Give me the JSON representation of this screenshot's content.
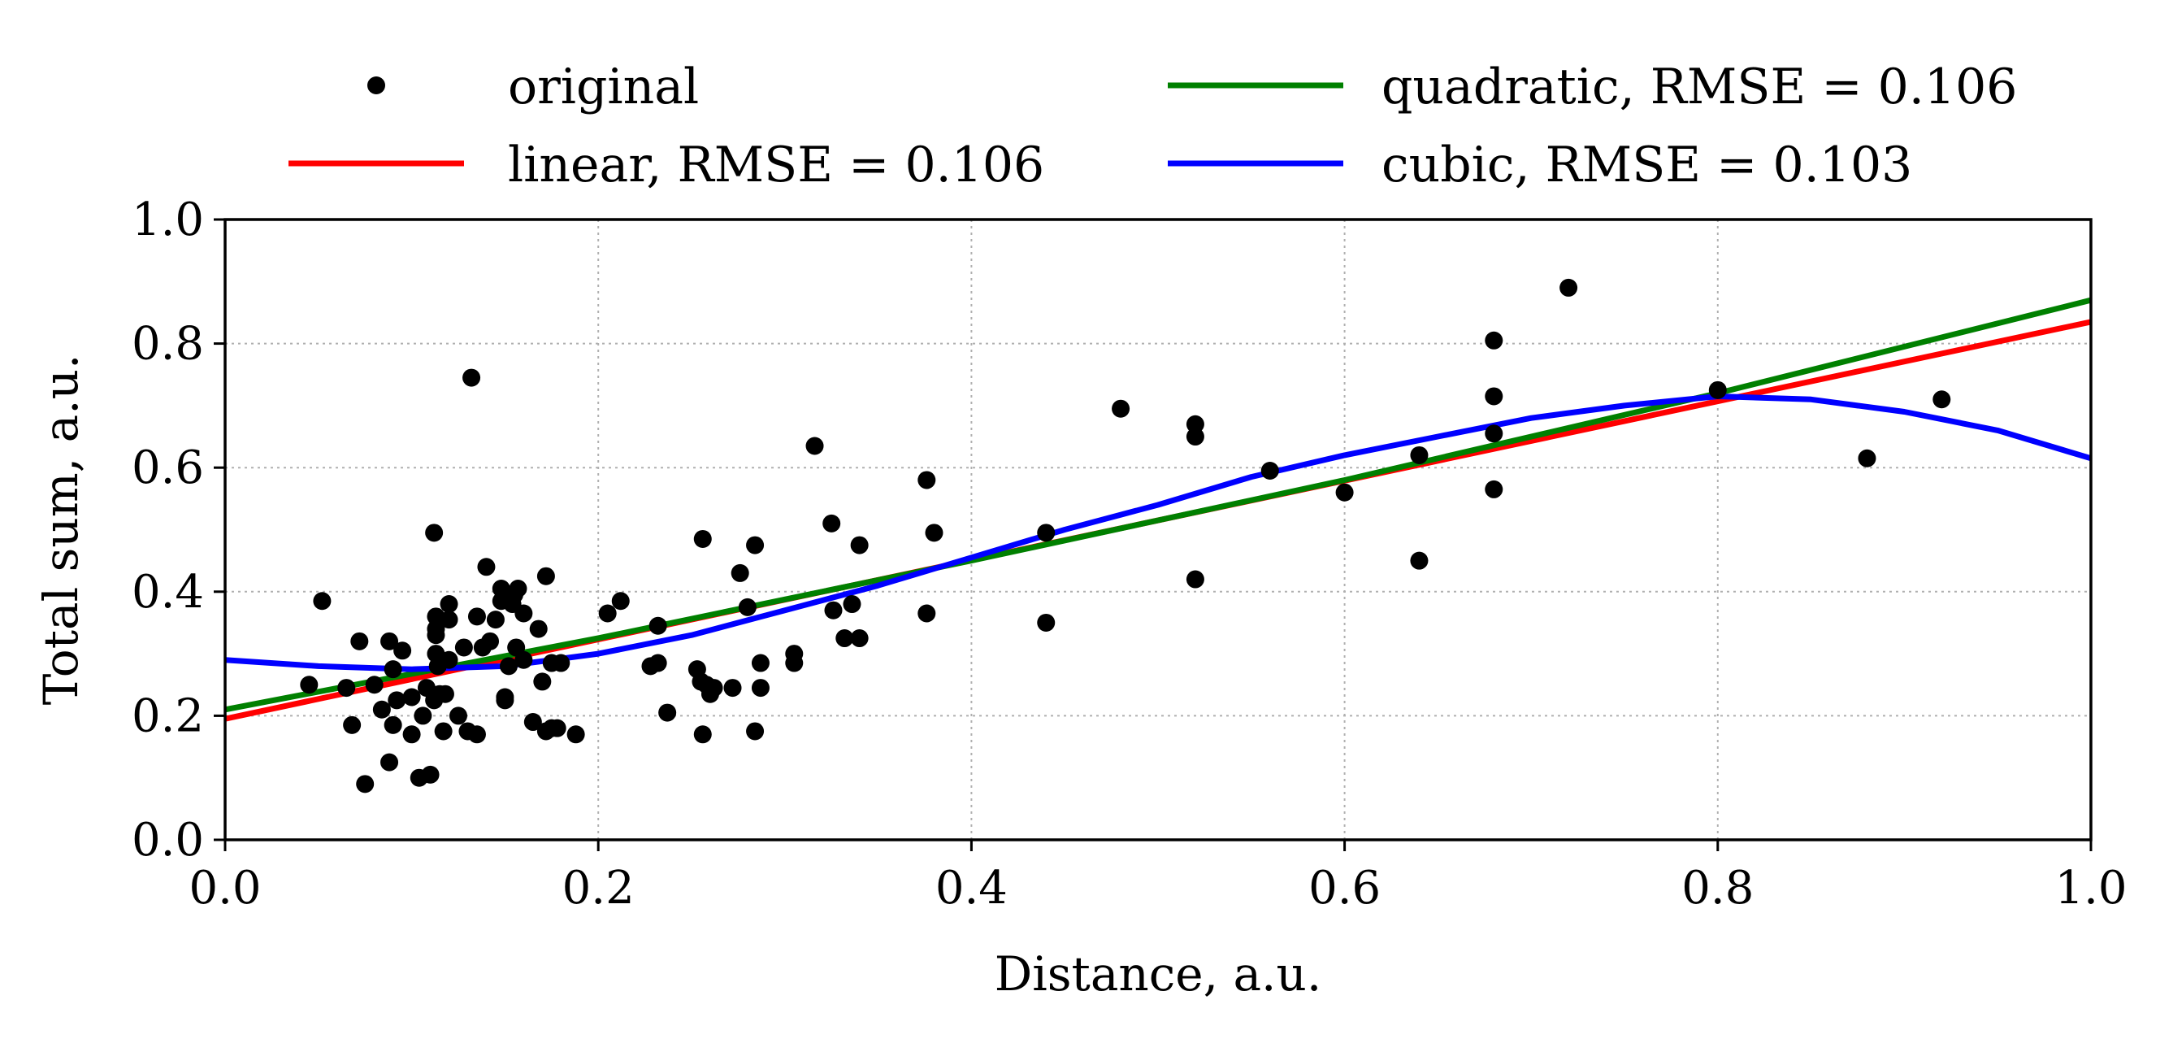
{
  "chart_data": {
    "type": "scatter",
    "xlabel": "Distance, a.u.",
    "ylabel": "Total sum, a.u.",
    "xlim": [
      0.0,
      1.0
    ],
    "ylim": [
      0.0,
      1.0
    ],
    "xticks": [
      "0.0",
      "0.2",
      "0.4",
      "0.6",
      "0.8",
      "1.0"
    ],
    "yticks": [
      "0.0",
      "0.2",
      "0.4",
      "0.6",
      "0.8",
      "1.0"
    ],
    "grid": true,
    "legend_position": "top",
    "colors": {
      "original": "#000000",
      "linear": "#ff0000",
      "quadratic": "#008000",
      "cubic": "#0000ff"
    },
    "series": [
      {
        "name": "original",
        "kind": "points",
        "points": [
          [
            0.045,
            0.25
          ],
          [
            0.052,
            0.385
          ],
          [
            0.065,
            0.245
          ],
          [
            0.068,
            0.185
          ],
          [
            0.072,
            0.32
          ],
          [
            0.075,
            0.09
          ],
          [
            0.08,
            0.25
          ],
          [
            0.084,
            0.21
          ],
          [
            0.088,
            0.32
          ],
          [
            0.088,
            0.125
          ],
          [
            0.09,
            0.185
          ],
          [
            0.09,
            0.275
          ],
          [
            0.092,
            0.225
          ],
          [
            0.095,
            0.305
          ],
          [
            0.1,
            0.17
          ],
          [
            0.1,
            0.23
          ],
          [
            0.104,
            0.1
          ],
          [
            0.106,
            0.2
          ],
          [
            0.108,
            0.245
          ],
          [
            0.11,
            0.105
          ],
          [
            0.112,
            0.225
          ],
          [
            0.112,
            0.495
          ],
          [
            0.113,
            0.36
          ],
          [
            0.113,
            0.34
          ],
          [
            0.113,
            0.33
          ],
          [
            0.113,
            0.3
          ],
          [
            0.114,
            0.28
          ],
          [
            0.115,
            0.235
          ],
          [
            0.117,
            0.175
          ],
          [
            0.118,
            0.235
          ],
          [
            0.12,
            0.29
          ],
          [
            0.12,
            0.355
          ],
          [
            0.12,
            0.38
          ],
          [
            0.125,
            0.2
          ],
          [
            0.128,
            0.31
          ],
          [
            0.13,
            0.175
          ],
          [
            0.132,
            0.745
          ],
          [
            0.135,
            0.36
          ],
          [
            0.135,
            0.17
          ],
          [
            0.138,
            0.31
          ],
          [
            0.14,
            0.44
          ],
          [
            0.142,
            0.32
          ],
          [
            0.145,
            0.355
          ],
          [
            0.148,
            0.385
          ],
          [
            0.148,
            0.405
          ],
          [
            0.15,
            0.23
          ],
          [
            0.15,
            0.225
          ],
          [
            0.152,
            0.28
          ],
          [
            0.154,
            0.38
          ],
          [
            0.155,
            0.395
          ],
          [
            0.156,
            0.31
          ],
          [
            0.157,
            0.405
          ],
          [
            0.16,
            0.365
          ],
          [
            0.16,
            0.29
          ],
          [
            0.165,
            0.19
          ],
          [
            0.168,
            0.34
          ],
          [
            0.17,
            0.255
          ],
          [
            0.172,
            0.175
          ],
          [
            0.172,
            0.425
          ],
          [
            0.175,
            0.285
          ],
          [
            0.175,
            0.18
          ],
          [
            0.178,
            0.18
          ],
          [
            0.18,
            0.285
          ],
          [
            0.188,
            0.17
          ],
          [
            0.205,
            0.365
          ],
          [
            0.212,
            0.385
          ],
          [
            0.228,
            0.28
          ],
          [
            0.232,
            0.285
          ],
          [
            0.232,
            0.345
          ],
          [
            0.237,
            0.205
          ],
          [
            0.253,
            0.275
          ],
          [
            0.255,
            0.255
          ],
          [
            0.256,
            0.17
          ],
          [
            0.256,
            0.485
          ],
          [
            0.258,
            0.25
          ],
          [
            0.26,
            0.235
          ],
          [
            0.262,
            0.245
          ],
          [
            0.272,
            0.245
          ],
          [
            0.276,
            0.43
          ],
          [
            0.28,
            0.375
          ],
          [
            0.284,
            0.175
          ],
          [
            0.284,
            0.475
          ],
          [
            0.287,
            0.285
          ],
          [
            0.287,
            0.245
          ],
          [
            0.305,
            0.285
          ],
          [
            0.305,
            0.3
          ],
          [
            0.316,
            0.635
          ],
          [
            0.325,
            0.51
          ],
          [
            0.326,
            0.37
          ],
          [
            0.332,
            0.325
          ],
          [
            0.336,
            0.38
          ],
          [
            0.34,
            0.475
          ],
          [
            0.34,
            0.325
          ],
          [
            0.376,
            0.58
          ],
          [
            0.376,
            0.365
          ],
          [
            0.38,
            0.495
          ],
          [
            0.44,
            0.495
          ],
          [
            0.44,
            0.35
          ],
          [
            0.48,
            0.695
          ],
          [
            0.52,
            0.67
          ],
          [
            0.52,
            0.65
          ],
          [
            0.52,
            0.42
          ],
          [
            0.56,
            0.595
          ],
          [
            0.6,
            0.56
          ],
          [
            0.64,
            0.62
          ],
          [
            0.64,
            0.45
          ],
          [
            0.68,
            0.805
          ],
          [
            0.68,
            0.715
          ],
          [
            0.68,
            0.655
          ],
          [
            0.68,
            0.565
          ],
          [
            0.72,
            0.89
          ],
          [
            0.8,
            0.725
          ],
          [
            0.88,
            0.615
          ],
          [
            0.92,
            0.71
          ]
        ]
      },
      {
        "name": "linear, RMSE = 0.106",
        "kind": "line",
        "line_points": [
          [
            0.0,
            0.195
          ],
          [
            1.0,
            0.835
          ]
        ]
      },
      {
        "name": "quadratic, RMSE = 0.106",
        "kind": "line",
        "line_points": [
          [
            0.0,
            0.21
          ],
          [
            0.2,
            0.325
          ],
          [
            0.4,
            0.45
          ],
          [
            0.6,
            0.58
          ],
          [
            0.8,
            0.72
          ],
          [
            1.0,
            0.87
          ]
        ]
      },
      {
        "name": "cubic, RMSE = 0.103",
        "kind": "line",
        "line_points": [
          [
            0.0,
            0.29
          ],
          [
            0.05,
            0.28
          ],
          [
            0.1,
            0.275
          ],
          [
            0.15,
            0.28
          ],
          [
            0.2,
            0.3
          ],
          [
            0.25,
            0.33
          ],
          [
            0.3,
            0.37
          ],
          [
            0.35,
            0.41
          ],
          [
            0.4,
            0.455
          ],
          [
            0.45,
            0.5
          ],
          [
            0.5,
            0.54
          ],
          [
            0.55,
            0.585
          ],
          [
            0.6,
            0.62
          ],
          [
            0.65,
            0.65
          ],
          [
            0.7,
            0.68
          ],
          [
            0.75,
            0.7
          ],
          [
            0.8,
            0.715
          ],
          [
            0.85,
            0.71
          ],
          [
            0.9,
            0.69
          ],
          [
            0.95,
            0.66
          ],
          [
            1.0,
            0.615
          ]
        ]
      }
    ]
  }
}
